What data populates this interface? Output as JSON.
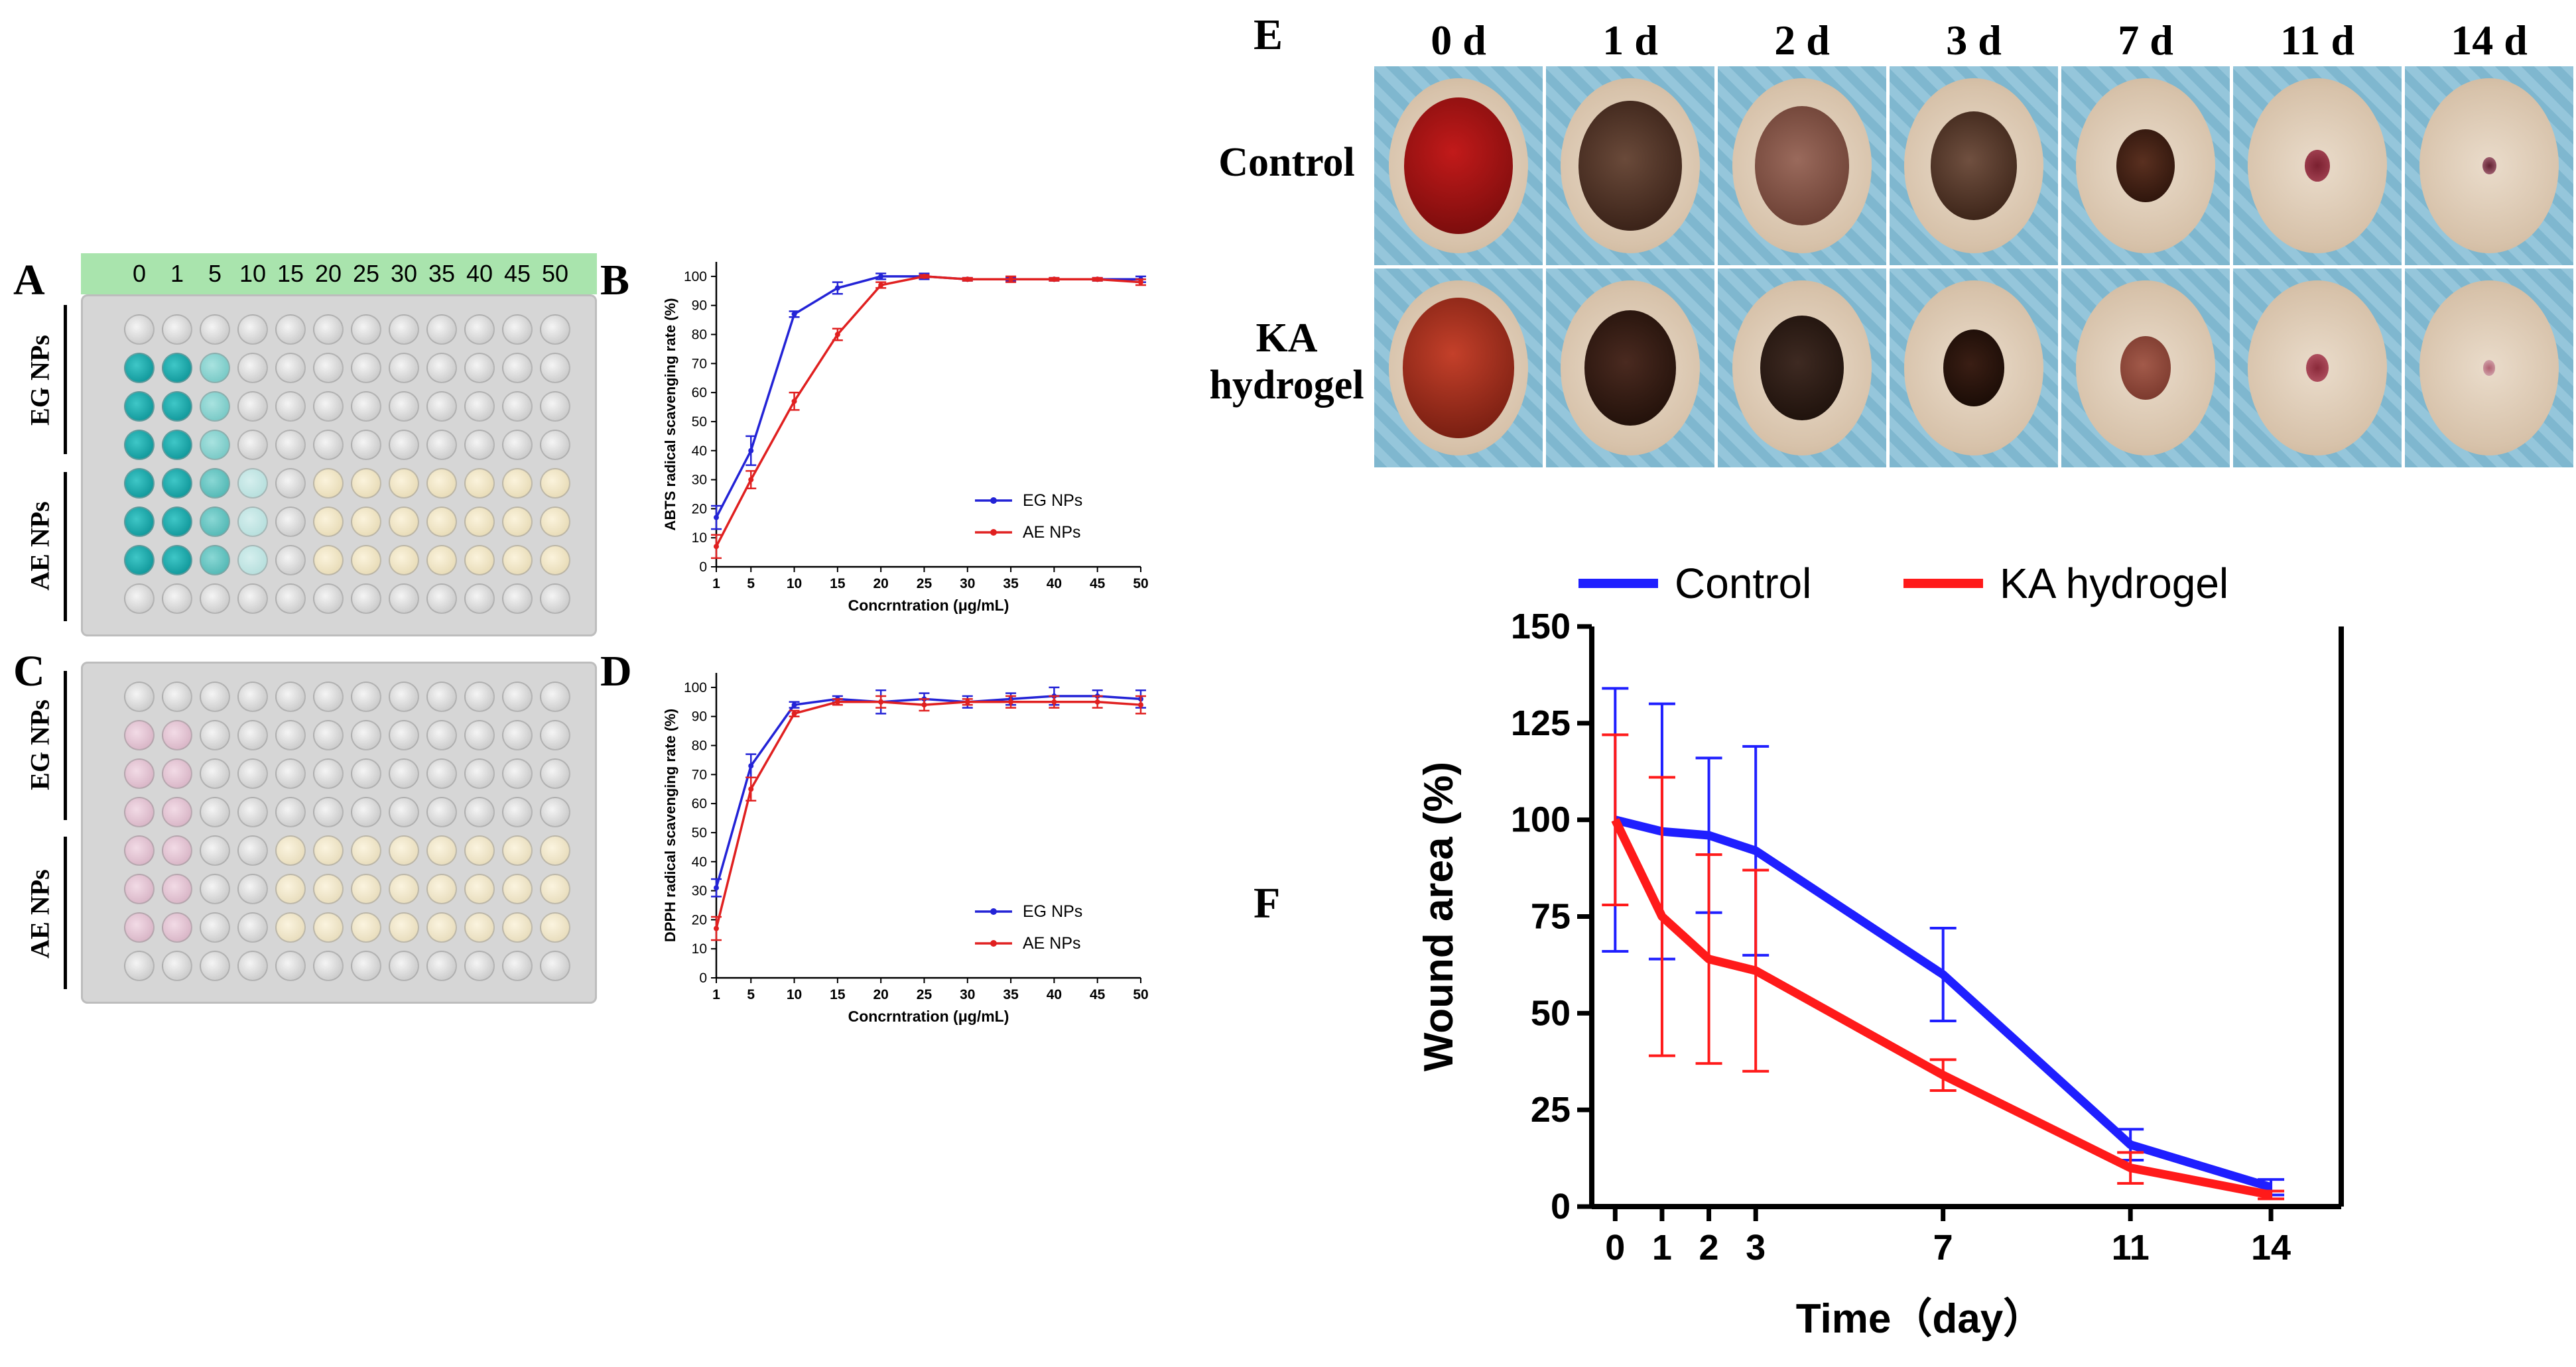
{
  "panel_labels": [
    "A",
    "B",
    "C",
    "D",
    "E",
    "F"
  ],
  "plate_concentrations": [
    "0",
    "1",
    "5",
    "10",
    "15",
    "20",
    "25",
    "30",
    "35",
    "40",
    "45",
    "50"
  ],
  "plate_groups": [
    "EG NPs",
    "AE NPs"
  ],
  "photo_days": [
    "0 d",
    "1 d",
    "2 d",
    "3 d",
    "7 d",
    "11 d",
    "14 d"
  ],
  "photo_rows": [
    {
      "line1": "Control",
      "line2": ""
    },
    {
      "line1": "KA",
      "line2": "hydrogel"
    }
  ],
  "colors": {
    "blue": "#2323d6",
    "red": "#e02020",
    "F_blue": "#1f1fff",
    "F_red": "#ff1a1a"
  },
  "chart_data": [
    {
      "id": "B",
      "type": "line",
      "xlabel": "Concrntration (μg/mL)",
      "ylabel": "ABTS radical scavenging rate (%)",
      "x": [
        1,
        5,
        10,
        15,
        20,
        25,
        30,
        35,
        40,
        45,
        50
      ],
      "xticks": [
        "1",
        "5",
        "10",
        "15",
        "20",
        "25",
        "30",
        "35",
        "40",
        "45",
        "50"
      ],
      "yticks": [
        "0",
        "10",
        "20",
        "30",
        "40",
        "50",
        "60",
        "70",
        "80",
        "90",
        "100"
      ],
      "ylim": [
        0,
        105
      ],
      "legend_position": "bottom-right",
      "series": [
        {
          "name": "EG NPs",
          "color": "blue",
          "values": [
            17,
            40,
            87,
            96,
            100,
            100,
            99,
            99,
            99,
            99,
            99
          ],
          "err": [
            4,
            5,
            1,
            2,
            1,
            1,
            0.5,
            0.5,
            0.5,
            0.5,
            1
          ]
        },
        {
          "name": "AE NPs",
          "color": "red",
          "values": [
            7,
            30,
            57,
            80,
            97,
            100,
            99,
            99,
            99,
            99,
            98
          ],
          "err": [
            4,
            3,
            3,
            2,
            1,
            0.5,
            0.5,
            1,
            0.5,
            0.5,
            1
          ]
        }
      ]
    },
    {
      "id": "D",
      "type": "line",
      "xlabel": "Concrntration (μg/mL)",
      "ylabel": "DPPH radical scavenging rate (%)",
      "x": [
        1,
        5,
        10,
        15,
        20,
        25,
        30,
        35,
        40,
        45,
        50
      ],
      "xticks": [
        "1",
        "5",
        "10",
        "15",
        "20",
        "25",
        "30",
        "35",
        "40",
        "45",
        "50"
      ],
      "yticks": [
        "0",
        "10",
        "20",
        "30",
        "40",
        "50",
        "60",
        "70",
        "80",
        "90",
        "100"
      ],
      "ylim": [
        0,
        105
      ],
      "legend_position": "bottom-right",
      "series": [
        {
          "name": "EG NPs",
          "color": "blue",
          "values": [
            31,
            73,
            94,
            96,
            95,
            96,
            95,
            96,
            97,
            97,
            96
          ],
          "err": [
            3,
            4,
            1,
            1,
            4,
            2,
            2,
            2,
            3,
            2,
            3
          ]
        },
        {
          "name": "AE NPs",
          "color": "red",
          "values": [
            17,
            65,
            91,
            95,
            95,
            94,
            95,
            95,
            95,
            95,
            94
          ],
          "err": [
            4,
            4,
            1,
            1,
            2,
            2,
            1,
            2,
            2,
            2,
            3
          ]
        }
      ]
    },
    {
      "id": "F",
      "type": "line",
      "xlabel": "Time（day）",
      "ylabel": "Wound area (%)",
      "x": [
        0,
        1,
        2,
        3,
        7,
        11,
        14
      ],
      "xticks": [
        "0",
        "1",
        "2",
        "3",
        "7",
        "11",
        "14"
      ],
      "yticks": [
        "0",
        "25",
        "50",
        "75",
        "100",
        "125",
        "150"
      ],
      "ylim": [
        0,
        150
      ],
      "xlim": [
        -0.5,
        15.5
      ],
      "legend_position": "top",
      "series": [
        {
          "name": "Control",
          "color": "F_blue",
          "values": [
            100,
            97,
            96,
            92,
            60,
            16,
            5
          ],
          "err": [
            34,
            33,
            20,
            27,
            12,
            4,
            2
          ]
        },
        {
          "name": "KA hydrogel",
          "color": "F_red",
          "values": [
            100,
            75,
            64,
            61,
            34,
            10,
            3
          ],
          "err": [
            22,
            36,
            27,
            26,
            4,
            4,
            1
          ]
        }
      ]
    }
  ]
}
